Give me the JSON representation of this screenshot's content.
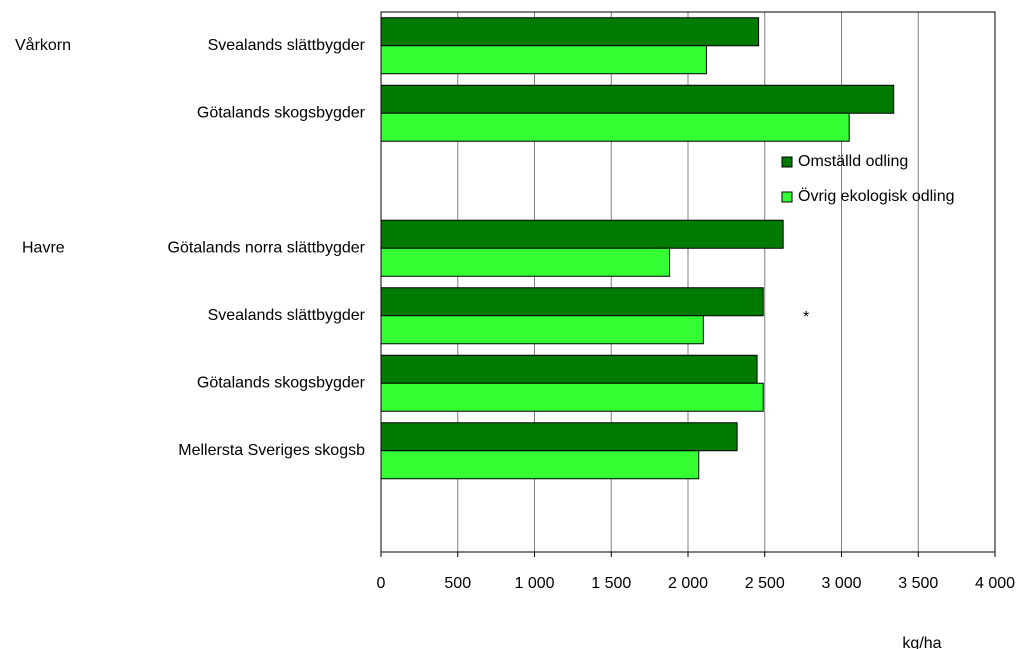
{
  "chart_data": {
    "type": "hbar",
    "categories": [
      "Svealands slättbygder",
      "Götalands skogsbygder",
      null,
      "Götalands norra slättbygder",
      "Svealands slättbygder",
      "Götalands skogsbygder",
      "Mellersta Sveriges skogsb",
      null
    ],
    "series": [
      {
        "name": "Omställd odling",
        "color": "#007a00",
        "values": [
          2460,
          3340,
          null,
          2620,
          2490,
          2450,
          2320,
          null
        ]
      },
      {
        "name": "Övrig ekologisk odling",
        "color": "#33ff33",
        "values": [
          2120,
          3050,
          null,
          1880,
          2100,
          2490,
          2070,
          null
        ]
      }
    ],
    "xlim": [
      0,
      4000
    ],
    "xticks": [
      0,
      500,
      {
        "value": 1000,
        "label": "1 000"
      },
      {
        "value": 1500,
        "label": "1 500"
      },
      {
        "value": 2000,
        "label": "2 000"
      },
      {
        "value": 2500,
        "label": "2 500"
      },
      {
        "value": 3000,
        "label": "3 000"
      },
      {
        "value": 3500,
        "label": "3 500"
      },
      {
        "value": 4000,
        "label": "4 000"
      }
    ],
    "x_label": "kg/ha",
    "annotations": [
      "Vårkorn",
      "Havre",
      "*"
    ],
    "grid": true,
    "legend": "right"
  }
}
